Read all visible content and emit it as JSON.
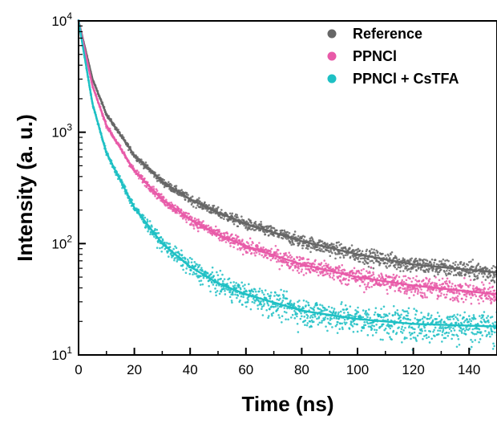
{
  "chart_data": {
    "type": "scatter",
    "xlabel": "Time (ns)",
    "ylabel": "Intensity (a. u.)",
    "xlim": [
      0,
      150
    ],
    "ylim": [
      10,
      10000
    ],
    "yscale": "log",
    "x_ticks": [
      0,
      20,
      40,
      60,
      80,
      100,
      120,
      140
    ],
    "y_ticks": [
      {
        "base": "10",
        "exp": "1"
      },
      {
        "base": "10",
        "exp": "2"
      },
      {
        "base": "10",
        "exp": "3"
      },
      {
        "base": "10",
        "exp": "4"
      }
    ],
    "legend_position": "top-right",
    "series": [
      {
        "name": "Reference",
        "color": "#666666",
        "x": [
          0,
          5,
          10,
          20,
          30,
          40,
          50,
          60,
          80,
          100,
          120,
          150
        ],
        "y": [
          10000,
          3000,
          1450,
          620,
          360,
          250,
          190,
          150,
          105,
          80,
          65,
          55
        ]
      },
      {
        "name": "PPNCl",
        "color": "#e85aa8",
        "x": [
          0,
          5,
          10,
          20,
          30,
          40,
          50,
          60,
          80,
          100,
          120,
          150
        ],
        "y": [
          10000,
          2600,
          1150,
          450,
          250,
          165,
          120,
          95,
          65,
          50,
          42,
          35
        ]
      },
      {
        "name": "PPNCl + CsTFA",
        "color": "#1ec0c4",
        "x": [
          0,
          5,
          10,
          20,
          30,
          40,
          50,
          60,
          80,
          100,
          120,
          150
        ],
        "y": [
          10000,
          1800,
          650,
          210,
          100,
          62,
          44,
          35,
          25,
          21,
          19,
          18
        ]
      }
    ]
  }
}
